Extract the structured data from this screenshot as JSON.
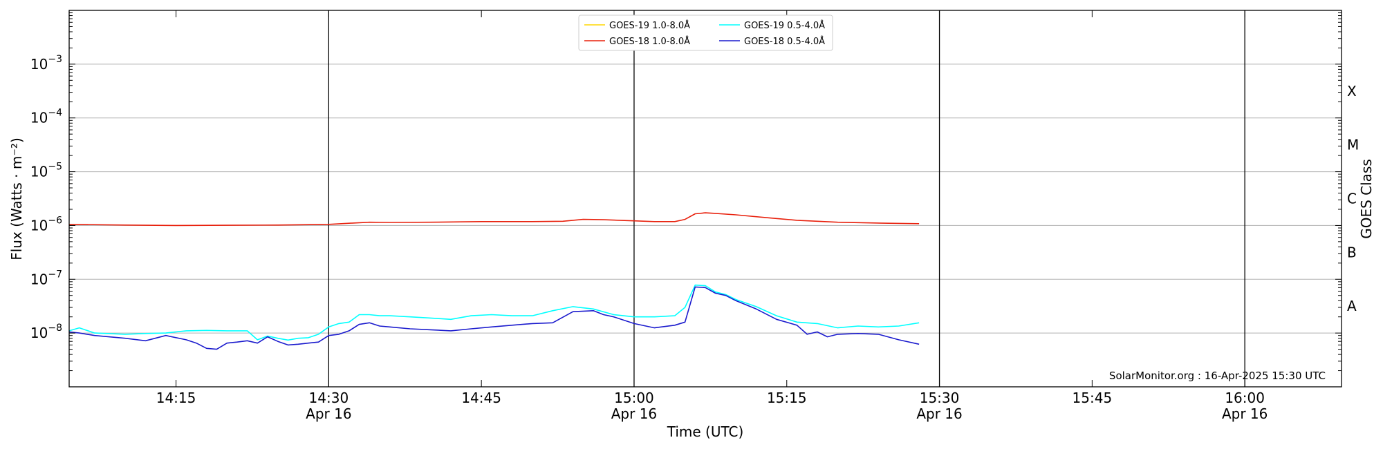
{
  "chart_data": {
    "type": "line",
    "title": "",
    "xlabel": "Time (UTC)",
    "ylabel": "Flux (Watts · m⁻²)",
    "ylabel_right": "GOES Class",
    "y_scale": "log",
    "ylim": [
      1e-09,
      0.01
    ],
    "xlim_minutes_after_1400": [
      4.5,
      129.5
    ],
    "grid": "horizontal",
    "legend_position": "top-center",
    "y_ticks": [
      {
        "value": 1e-08,
        "base": "10",
        "exp": "−8"
      },
      {
        "value": 1e-07,
        "base": "10",
        "exp": "−7"
      },
      {
        "value": 1e-06,
        "base": "10",
        "exp": "−6"
      },
      {
        "value": 1e-05,
        "base": "10",
        "exp": "−5"
      },
      {
        "value": 0.0001,
        "base": "10",
        "exp": "−4"
      },
      {
        "value": 0.001,
        "base": "10",
        "exp": "−3"
      }
    ],
    "goes_classes": [
      {
        "label": "A",
        "value": 3.16e-08
      },
      {
        "label": "B",
        "value": 3.16e-07
      },
      {
        "label": "C",
        "value": 3.16e-06
      },
      {
        "label": "M",
        "value": 3.16e-05
      },
      {
        "label": "X",
        "value": 0.000316
      }
    ],
    "x_ticks": [
      {
        "time": "14:15",
        "date": ""
      },
      {
        "time": "14:30",
        "date": "Apr 16"
      },
      {
        "time": "14:45",
        "date": ""
      },
      {
        "time": "15:00",
        "date": "Apr 16"
      },
      {
        "time": "15:15",
        "date": ""
      },
      {
        "time": "15:30",
        "date": "Apr 16"
      },
      {
        "time": "15:45",
        "date": ""
      },
      {
        "time": "16:00",
        "date": "Apr 16"
      }
    ],
    "x_tick_minutes": [
      15,
      30,
      45,
      60,
      75,
      90,
      105,
      120
    ],
    "vertical_lines_minutes": [
      30,
      60,
      90,
      120
    ],
    "credit": "SolarMonitor.org : 16-Apr-2025 15:30 UTC",
    "series": [
      {
        "name": "GOES-19 1.0-8.0Å",
        "color": "#ffd700",
        "x": [],
        "y": []
      },
      {
        "name": "GOES-18 1.0-8.0Å",
        "color": "#e8200c",
        "x": [
          4.5,
          10,
          15,
          20,
          25,
          30,
          32,
          34,
          36,
          40,
          45,
          50,
          53,
          55,
          57,
          60,
          62,
          64,
          65,
          66,
          67,
          68,
          70,
          73,
          76,
          80,
          85,
          88
        ],
        "y": [
          1.05e-06,
          1.02e-06,
          1e-06,
          1.01e-06,
          1.02e-06,
          1.05e-06,
          1.1e-06,
          1.15e-06,
          1.14e-06,
          1.15e-06,
          1.18e-06,
          1.18e-06,
          1.2e-06,
          1.3e-06,
          1.28e-06,
          1.22e-06,
          1.18e-06,
          1.18e-06,
          1.3e-06,
          1.65e-06,
          1.72e-06,
          1.68e-06,
          1.58e-06,
          1.4e-06,
          1.25e-06,
          1.15e-06,
          1.1e-06,
          1.08e-06
        ]
      },
      {
        "name": "GOES-19 0.5-4.0Å",
        "color": "#00ffff",
        "x": [
          4.5,
          5.5,
          7,
          10,
          12,
          14,
          16,
          18,
          20,
          22,
          23,
          24,
          25,
          26,
          27,
          28,
          29,
          30,
          31,
          32,
          33,
          34,
          35,
          36,
          38,
          40,
          42,
          44,
          46,
          48,
          50,
          52,
          54,
          56,
          58,
          60,
          62,
          64,
          65,
          66,
          67,
          68,
          69,
          70,
          72,
          74,
          76,
          78,
          80,
          82,
          84,
          86,
          88
        ],
        "y": [
          1.1e-08,
          1.25e-08,
          1e-08,
          9.5e-09,
          9.8e-09,
          1e-08,
          1.1e-08,
          1.12e-08,
          1.1e-08,
          1.1e-08,
          7.5e-09,
          8.8e-09,
          8e-09,
          7.4e-09,
          8e-09,
          8.2e-09,
          9.5e-09,
          1.3e-08,
          1.5e-08,
          1.6e-08,
          2.2e-08,
          2.2e-08,
          2.1e-08,
          2.1e-08,
          2e-08,
          1.9e-08,
          1.8e-08,
          2.1e-08,
          2.2e-08,
          2.1e-08,
          2.1e-08,
          2.6e-08,
          3.1e-08,
          2.8e-08,
          2.2e-08,
          2e-08,
          2e-08,
          2.1e-08,
          3e-08,
          7.8e-08,
          7.6e-08,
          5.8e-08,
          5.2e-08,
          4.2e-08,
          3.1e-08,
          2.1e-08,
          1.6e-08,
          1.5e-08,
          1.25e-08,
          1.35e-08,
          1.3e-08,
          1.35e-08,
          1.55e-08
        ]
      },
      {
        "name": "GOES-18 0.5-4.0Å",
        "color": "#1a1acd",
        "x": [
          4.5,
          5.5,
          7,
          10,
          12,
          14,
          16,
          17,
          18,
          19,
          20,
          21,
          22,
          23,
          24,
          25,
          26,
          27,
          28,
          29,
          30,
          31,
          32,
          33,
          34,
          35,
          36,
          38,
          40,
          42,
          44,
          46,
          48,
          50,
          52,
          54,
          56,
          57,
          58,
          60,
          62,
          64,
          65,
          66,
          67,
          68,
          69,
          70,
          72,
          74,
          76,
          77,
          78,
          79,
          80,
          82,
          84,
          86,
          88
        ],
        "y": [
          1.05e-08,
          1e-08,
          9e-09,
          8e-09,
          7.2e-09,
          9e-09,
          7.5e-09,
          6.5e-09,
          5.2e-09,
          5e-09,
          6.5e-09,
          6.8e-09,
          7.2e-09,
          6.5e-09,
          8.5e-09,
          7e-09,
          6e-09,
          6.2e-09,
          6.5e-09,
          6.8e-09,
          9e-09,
          9.5e-09,
          1.1e-08,
          1.45e-08,
          1.55e-08,
          1.35e-08,
          1.3e-08,
          1.2e-08,
          1.15e-08,
          1.1e-08,
          1.2e-08,
          1.3e-08,
          1.4e-08,
          1.5e-08,
          1.55e-08,
          2.5e-08,
          2.6e-08,
          2.2e-08,
          2e-08,
          1.5e-08,
          1.25e-08,
          1.4e-08,
          1.6e-08,
          7.2e-08,
          7e-08,
          5.5e-08,
          5e-08,
          4e-08,
          2.8e-08,
          1.8e-08,
          1.4e-08,
          9.5e-09,
          1.05e-08,
          8.5e-09,
          9.5e-09,
          9.8e-09,
          9.5e-09,
          7.5e-09,
          6.2e-09
        ]
      }
    ]
  }
}
